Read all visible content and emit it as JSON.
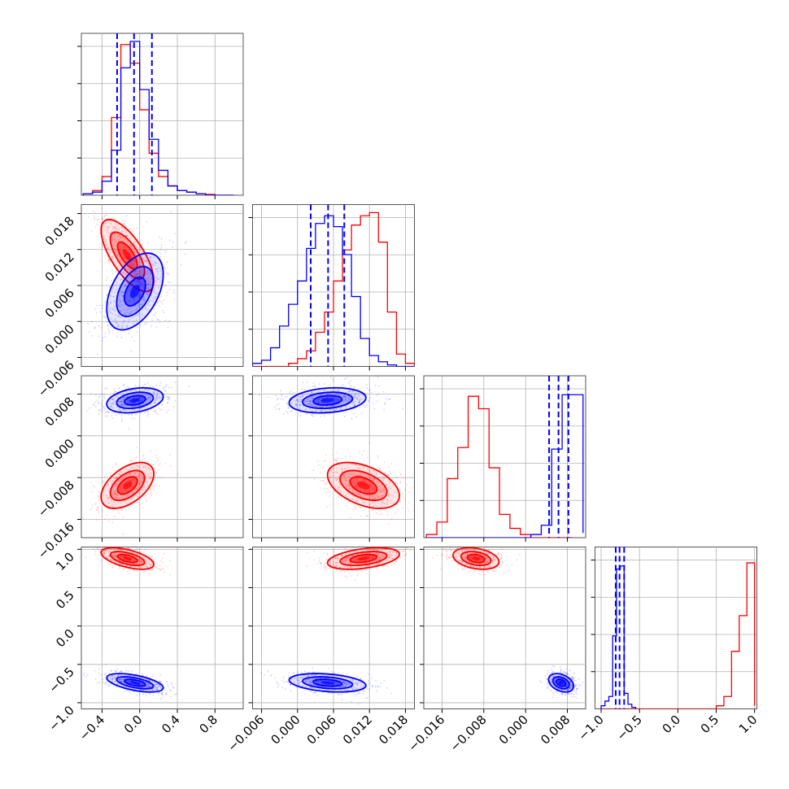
{
  "chart_data": {
    "type": "corner",
    "colors": {
      "series_a": "#ff0000",
      "series_b": "#0000ff"
    },
    "grid": true,
    "parameters": [
      {
        "range": [
          -0.62,
          1.1
        ],
        "ticks": [
          -0.4,
          0.0,
          0.4,
          0.8
        ],
        "tick_labels": [
          "−0.4",
          "0.0",
          "0.4",
          "0.8"
        ]
      },
      {
        "range": [
          -0.0075,
          0.0195
        ],
        "ticks": [
          -0.006,
          0.0,
          0.006,
          0.012,
          0.018
        ],
        "tick_labels": [
          "−0.006",
          "0.000",
          "0.006",
          "0.012",
          "0.018"
        ]
      },
      {
        "range": [
          -0.0195,
          0.0115
        ],
        "ticks": [
          -0.016,
          -0.008,
          0.0,
          0.008
        ],
        "tick_labels": [
          "−0.016",
          "−0.008",
          "0.000",
          "0.008"
        ]
      },
      {
        "range": [
          -1.08,
          1.03
        ],
        "ticks": [
          -1.0,
          -0.5,
          0.0,
          0.5,
          1.0
        ],
        "tick_labels": [
          "−1.0",
          "−0.5",
          "0.0",
          "0.5",
          "1.0"
        ]
      }
    ],
    "series_a": {
      "means": [
        -0.13,
        0.011,
        -0.0095,
        0.88
      ],
      "sds": [
        0.14,
        0.003,
        0.0022,
        0.07
      ],
      "correlations": {
        "1_0": -0.7,
        "2_0": 0.5,
        "2_1": -0.45,
        "3_0": -0.55,
        "3_1": 0.4,
        "3_2": -0.3
      },
      "histograms": [
        {
          "edges": [
            -0.6,
            -0.5,
            -0.4,
            -0.3,
            -0.2,
            -0.1,
            0.0,
            0.1,
            0.2,
            0.3,
            0.4,
            0.5,
            0.6,
            0.7,
            0.8,
            0.9,
            1.0
          ],
          "counts": [
            0.01,
            0.03,
            0.12,
            0.5,
            0.97,
            0.85,
            0.55,
            0.27,
            0.12,
            0.06,
            0.03,
            0.02,
            0.01,
            0.005,
            0,
            0
          ]
        },
        {
          "edges": [
            -0.0075,
            -0.006,
            -0.0045,
            -0.003,
            -0.0015,
            0.0,
            0.0015,
            0.003,
            0.0045,
            0.006,
            0.0075,
            0.009,
            0.0105,
            0.012,
            0.0135,
            0.015,
            0.0165,
            0.018,
            0.0195
          ],
          "counts": [
            0,
            0,
            0,
            0,
            0.02,
            0.05,
            0.1,
            0.22,
            0.35,
            0.55,
            0.75,
            0.91,
            0.97,
            0.99,
            0.8,
            0.35,
            0.08,
            0.02
          ]
        },
        {
          "edges": [
            -0.019,
            -0.017,
            -0.015,
            -0.013,
            -0.011,
            -0.009,
            -0.007,
            -0.005,
            -0.003,
            -0.001,
            0.001,
            0.003,
            0.005,
            0.007,
            0.009
          ],
          "counts": [
            0.02,
            0.1,
            0.38,
            0.58,
            0.91,
            0.83,
            0.45,
            0.15,
            0.06,
            0.02,
            0,
            0,
            0,
            0
          ]
        },
        {
          "edges": [
            -1.0,
            -0.9,
            -0.8,
            -0.7,
            -0.6,
            -0.5,
            -0.4,
            -0.3,
            -0.2,
            -0.1,
            0.0,
            0.1,
            0.2,
            0.3,
            0.4,
            0.5,
            0.6,
            0.7,
            0.8,
            0.9,
            1.0
          ],
          "counts": [
            0,
            0,
            0,
            0,
            0,
            0,
            0,
            0,
            0,
            0,
            0,
            0,
            0,
            0,
            0,
            0.02,
            0.08,
            0.37,
            0.6,
            0.94,
            0.02
          ]
        }
      ]
    },
    "series_b": {
      "means": [
        -0.05,
        0.005,
        0.0068,
        -0.74
      ],
      "sds": [
        0.15,
        0.0032,
        0.0012,
        0.06
      ],
      "correlations": {
        "1_0": 0.45,
        "2_0": 0.3,
        "2_1": 0.2,
        "3_0": -0.55,
        "3_1": -0.3,
        "3_2": -0.35
      },
      "quantiles": [
        [
          -0.24,
          -0.06,
          0.13
        ],
        [
          0.0022,
          0.0051,
          0.0078
        ],
        [
          0.0045,
          0.0063,
          0.0082
        ],
        [
          -0.81,
          -0.76,
          -0.7
        ]
      ],
      "histograms": [
        {
          "edges": [
            -0.6,
            -0.5,
            -0.4,
            -0.3,
            -0.2,
            -0.1,
            0.0,
            0.1,
            0.2,
            0.3,
            0.4,
            0.5,
            0.6,
            0.7,
            0.8,
            0.9,
            1.0
          ],
          "counts": [
            0.01,
            0.02,
            0.09,
            0.29,
            0.82,
            0.99,
            0.68,
            0.36,
            0.16,
            0.06,
            0.03,
            0.02,
            0.01,
            0,
            0,
            0
          ]
        },
        {
          "edges": [
            -0.0075,
            -0.006,
            -0.0045,
            -0.003,
            -0.0015,
            0.0,
            0.0015,
            0.003,
            0.0045,
            0.006,
            0.0075,
            0.009,
            0.0105,
            0.012,
            0.0135,
            0.015,
            0.0165,
            0.018,
            0.0195
          ],
          "counts": [
            0.02,
            0.04,
            0.12,
            0.26,
            0.4,
            0.55,
            0.76,
            0.92,
            0.97,
            0.9,
            0.72,
            0.45,
            0.18,
            0.07,
            0.03,
            0.01,
            0,
            0
          ]
        },
        {
          "edges": [
            -0.019,
            -0.017,
            -0.015,
            -0.013,
            -0.011,
            -0.009,
            -0.007,
            -0.005,
            -0.003,
            -0.001,
            0.001,
            0.003,
            0.005,
            0.007,
            0.009,
            0.011
          ],
          "counts": [
            0,
            0,
            0,
            0,
            0,
            0,
            0,
            0,
            0,
            0,
            0.02,
            0.08,
            0.57,
            0.92,
            0.92,
            0.03
          ]
        },
        {
          "edges": [
            -1.0,
            -0.95,
            -0.9,
            -0.85,
            -0.8,
            -0.75,
            -0.7,
            -0.65,
            -0.6,
            -0.55
          ],
          "counts": [
            0.02,
            0.05,
            0.08,
            0.47,
            0.9,
            0.92,
            0.1,
            0.03,
            0.01
          ]
        }
      ]
    }
  }
}
